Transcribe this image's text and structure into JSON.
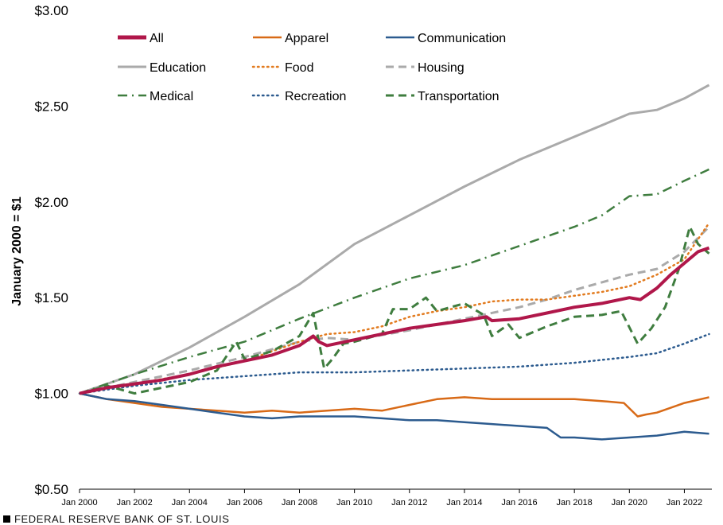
{
  "chart_data": {
    "type": "line",
    "title": "",
    "ylabel": "January  2000 = $1",
    "xlabel": "",
    "ylim": [
      0.5,
      3.0
    ],
    "xlim": [
      2000,
      2023.0
    ],
    "y_ticks": [
      0.5,
      1.0,
      1.5,
      2.0,
      2.5,
      3.0
    ],
    "y_tick_labels": [
      "$0.50",
      "$1.00",
      "$1.50",
      "$2.00",
      "$2.50",
      "$3.00"
    ],
    "x_ticks": [
      2000,
      2002,
      2004,
      2006,
      2008,
      2010,
      2012,
      2014,
      2016,
      2018,
      2020,
      2022
    ],
    "x_tick_labels": [
      "Jan 2000",
      "Jan 2002",
      "Jan 2004",
      "Jan 2006",
      "Jan 2008",
      "Jan 2010",
      "Jan 2012",
      "Jan 2014",
      "Jan 2016",
      "Jan 2018",
      "Jan 2020",
      "Jan 2022"
    ],
    "grid": false,
    "legend_position": "top-left",
    "series": [
      {
        "name": "All",
        "color": "#b0174a",
        "dash": "solid",
        "width": 4,
        "x": [
          2000,
          2001,
          2002,
          2003,
          2004,
          2005,
          2006,
          2007,
          2008,
          2008.5,
          2008.7,
          2009,
          2010,
          2011,
          2012,
          2013,
          2014,
          2014.8,
          2015,
          2016,
          2017,
          2018,
          2019,
          2020,
          2020.4,
          2021,
          2021.5,
          2022,
          2022.5,
          2022.9
        ],
        "values": [
          1.0,
          1.03,
          1.05,
          1.07,
          1.1,
          1.14,
          1.17,
          1.2,
          1.25,
          1.3,
          1.27,
          1.25,
          1.28,
          1.31,
          1.34,
          1.36,
          1.38,
          1.4,
          1.38,
          1.39,
          1.42,
          1.45,
          1.47,
          1.5,
          1.49,
          1.55,
          1.62,
          1.68,
          1.74,
          1.76
        ]
      },
      {
        "name": "Apparel",
        "color": "#d86a17",
        "dash": "solid",
        "width": 2.5,
        "x": [
          2000,
          2001,
          2002,
          2003,
          2004,
          2005,
          2006,
          2007,
          2008,
          2009,
          2010,
          2011,
          2012,
          2013,
          2014,
          2015,
          2016,
          2017,
          2018,
          2019,
          2019.8,
          2020.3,
          2020.6,
          2021,
          2022,
          2022.9
        ],
        "values": [
          1.0,
          0.97,
          0.95,
          0.93,
          0.92,
          0.91,
          0.9,
          0.91,
          0.9,
          0.91,
          0.92,
          0.91,
          0.94,
          0.97,
          0.98,
          0.97,
          0.97,
          0.97,
          0.97,
          0.96,
          0.95,
          0.88,
          0.89,
          0.9,
          0.95,
          0.98
        ]
      },
      {
        "name": "Communication",
        "color": "#2c5b8f",
        "dash": "solid",
        "width": 2.5,
        "x": [
          2000,
          2001,
          2002,
          2003,
          2004,
          2005,
          2006,
          2007,
          2008,
          2009,
          2010,
          2011,
          2012,
          2013,
          2014,
          2015,
          2016,
          2017,
          2017.5,
          2018,
          2019,
          2020,
          2021,
          2022,
          2022.9
        ],
        "values": [
          1.0,
          0.97,
          0.96,
          0.94,
          0.92,
          0.9,
          0.88,
          0.87,
          0.88,
          0.88,
          0.88,
          0.87,
          0.86,
          0.86,
          0.85,
          0.84,
          0.83,
          0.82,
          0.77,
          0.77,
          0.76,
          0.77,
          0.78,
          0.8,
          0.79
        ]
      },
      {
        "name": "Education",
        "color": "#aaaaaa",
        "dash": "solid",
        "width": 3,
        "x": [
          2000,
          2002,
          2004,
          2006,
          2008,
          2010,
          2012,
          2014,
          2016,
          2018,
          2020,
          2021,
          2022,
          2022.9
        ],
        "values": [
          1.0,
          1.1,
          1.24,
          1.4,
          1.57,
          1.78,
          1.93,
          2.08,
          2.22,
          2.34,
          2.46,
          2.48,
          2.54,
          2.61
        ]
      },
      {
        "name": "Food",
        "color": "#e27b1f",
        "dash": "dot",
        "width": 2.5,
        "x": [
          2000,
          2002,
          2004,
          2006,
          2008,
          2009,
          2010,
          2011,
          2012,
          2013,
          2014,
          2015,
          2016,
          2017,
          2018,
          2019,
          2020,
          2021,
          2022,
          2022.9
        ],
        "values": [
          1.0,
          1.05,
          1.1,
          1.17,
          1.27,
          1.31,
          1.32,
          1.35,
          1.4,
          1.43,
          1.45,
          1.48,
          1.49,
          1.49,
          1.51,
          1.53,
          1.56,
          1.62,
          1.7,
          1.89
        ]
      },
      {
        "name": "Housing",
        "color": "#aaaaaa",
        "dash": "dash",
        "width": 3,
        "x": [
          2000,
          2002,
          2004,
          2006,
          2008,
          2009,
          2010,
          2012,
          2014,
          2016,
          2017,
          2018,
          2019,
          2020,
          2021,
          2022,
          2022.9
        ],
        "values": [
          1.0,
          1.06,
          1.12,
          1.19,
          1.27,
          1.29,
          1.28,
          1.33,
          1.39,
          1.45,
          1.49,
          1.54,
          1.58,
          1.62,
          1.65,
          1.74,
          1.87
        ]
      },
      {
        "name": "Medical",
        "color": "#3f7d3f",
        "dash": "dashdot",
        "width": 2.5,
        "x": [
          2000,
          2002,
          2004,
          2006,
          2008,
          2010,
          2012,
          2014,
          2016,
          2018,
          2019,
          2020,
          2021,
          2022,
          2022.9
        ],
        "values": [
          1.0,
          1.1,
          1.19,
          1.27,
          1.39,
          1.5,
          1.6,
          1.67,
          1.77,
          1.87,
          1.93,
          2.03,
          2.04,
          2.11,
          2.17
        ]
      },
      {
        "name": "Recreation",
        "color": "#2c5b8f",
        "dash": "dot",
        "width": 2.5,
        "x": [
          2000,
          2002,
          2004,
          2006,
          2008,
          2010,
          2012,
          2014,
          2016,
          2018,
          2020,
          2021,
          2022,
          2022.9
        ],
        "values": [
          1.0,
          1.04,
          1.07,
          1.09,
          1.11,
          1.11,
          1.12,
          1.13,
          1.14,
          1.16,
          1.19,
          1.21,
          1.26,
          1.31
        ]
      },
      {
        "name": "Transportation",
        "color": "#3f7d3f",
        "dash": "dash",
        "width": 3,
        "x": [
          2000,
          2001,
          2002,
          2003,
          2004,
          2005,
          2005.7,
          2006,
          2007,
          2008,
          2008.5,
          2008.9,
          2009.2,
          2009.6,
          2010,
          2011,
          2011.4,
          2012,
          2012.6,
          2013,
          2014,
          2014.7,
          2015,
          2015.6,
          2016,
          2017,
          2018,
          2019,
          2019.7,
          2020.3,
          2020.8,
          2021.3,
          2021.8,
          2022.2,
          2022.5,
          2022.9
        ],
        "values": [
          1.0,
          1.04,
          1.0,
          1.03,
          1.06,
          1.12,
          1.27,
          1.18,
          1.22,
          1.3,
          1.42,
          1.13,
          1.18,
          1.26,
          1.27,
          1.31,
          1.44,
          1.44,
          1.5,
          1.43,
          1.47,
          1.41,
          1.3,
          1.36,
          1.29,
          1.35,
          1.4,
          1.41,
          1.43,
          1.26,
          1.34,
          1.45,
          1.65,
          1.87,
          1.78,
          1.73
        ]
      }
    ]
  },
  "footer": {
    "source": "FEDERAL RESERVE BANK OF ST. LOUIS"
  }
}
